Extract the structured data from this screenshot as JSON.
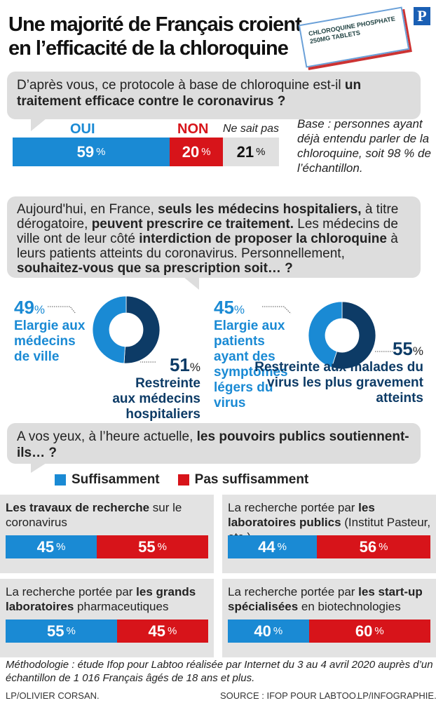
{
  "title": [
    "Une majorité de Français croient",
    "en l’efficacité de la chloroquine"
  ],
  "logo": "P",
  "pillbox": "CHLOROQUINE PHOSPHATE 250MG TABLETS",
  "colors": {
    "blue": "#1a8ad4",
    "red": "#d7141a",
    "navy": "#0d3b66",
    "gray": "#e0e0e0"
  },
  "q1": {
    "text_plain": "D’après vous, ce protocole à base de chloroquine est-il ",
    "text_bold": "un traitement efficace contre le coronavirus ?",
    "labels": [
      "OUI",
      "NON",
      "Ne sait pas"
    ],
    "values": [
      59,
      20,
      21
    ],
    "unit": "%",
    "base_note": "Base : personnes ayant déjà entendu parler de la chloroquine, soit 98 % de l’échantillon."
  },
  "q2": {
    "parts": [
      "Aujourd'hui, en France, ",
      "seuls les médecins hospitaliers,",
      " à titre dérogatoire, ",
      "peuvent prescrire ce traitement.",
      " Les médecins de ville ont de leur côté ",
      "interdiction de proposer la chloroquine",
      " à leurs patients atteints du coronavirus. Personnellement, ",
      "souhaitez-vous que sa prescription soit… ?"
    ],
    "donuts": [
      {
        "a_value": 49,
        "a_label": "Elargie aux médecins de ville",
        "b_value": 51,
        "b_label": "Restreinte aux médecins hospitaliers"
      },
      {
        "a_value": 45,
        "a_label": "Elargie aux patients ayant des symptômes légers du virus",
        "b_value": 55,
        "b_label": "Restreinte aux malades du virus les plus gravement atteints"
      }
    ]
  },
  "q3": {
    "text_plain": "A vos yeux, à l’heure actuelle, ",
    "text_bold": "les pouvoirs publics soutiennent-ils… ?",
    "legend": [
      "Suffisamment",
      "Pas suffisamment"
    ],
    "panels": [
      {
        "bold1": "Les travaux de recherche",
        "plain": " sur le coronavirus",
        "bold2": "",
        "rest": "",
        "values": [
          45,
          55
        ]
      },
      {
        "bold1": "",
        "plain": "La recherche portée par ",
        "bold2": "les laboratoires publics",
        "rest": " (Institut Pasteur, etc.)",
        "values": [
          44,
          56
        ]
      },
      {
        "bold1": "",
        "plain": "La recherche portée par ",
        "bold2": "les grands laboratoires",
        "rest": " pharmaceutiques",
        "values": [
          55,
          45
        ]
      },
      {
        "bold1": "",
        "plain": "La recherche portée par ",
        "bold2": "les start-up spécialisées",
        "rest": " en biotechnologies",
        "values": [
          40,
          60
        ]
      }
    ]
  },
  "footer": {
    "method": "Méthodologie : étude Ifop pour Labtoo réalisée par Internet du 3 au 4 avril 2020 auprès d’un échantillon de 1 016 Français âgés de 18 ans et plus.",
    "photo": "LP/OLIVIER CORSAN.",
    "source": "SOURCE : IFOP POUR LABTOO.",
    "infographie": "LP/INFOGRAPHIE."
  },
  "chart_data": [
    {
      "type": "bar",
      "stacked": true,
      "categories": [
        "OUI",
        "NON",
        "Ne sait pas"
      ],
      "values": [
        59,
        20,
        21
      ]
    },
    {
      "type": "pie",
      "donut": true,
      "categories": [
        "Elargie aux médecins de ville",
        "Restreinte aux médecins hospitaliers"
      ],
      "values": [
        49,
        51
      ]
    },
    {
      "type": "pie",
      "donut": true,
      "categories": [
        "Elargie aux patients ayant des symptômes légers du virus",
        "Restreinte aux malades du virus les plus gravement atteints"
      ],
      "values": [
        45,
        55
      ]
    },
    {
      "type": "bar",
      "stacked": true,
      "series": [
        {
          "name": "Suffisamment",
          "values": [
            45,
            44,
            55,
            40
          ]
        },
        {
          "name": "Pas suffisamment",
          "values": [
            55,
            56,
            45,
            60
          ]
        }
      ]
    }
  ]
}
